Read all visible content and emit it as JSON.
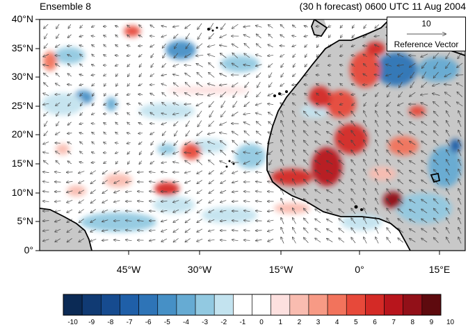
{
  "header": {
    "ensemble_label": "Ensemble 8",
    "forecast_label": "(30 h forecast) 0600 UTC 11 Aug 2004"
  },
  "map": {
    "lat_labels": [
      "40°N",
      "35°N",
      "30°N",
      "25°N",
      "20°N",
      "15°N",
      "10°N",
      "5°N",
      "0°"
    ],
    "lon_labels": [
      "45°W",
      "30°W",
      "15°W",
      "0°",
      "15°E"
    ],
    "reference_vector": {
      "magnitude": "10",
      "label": "Reference Vector"
    },
    "land_color": "#c8c8c8",
    "coast_color": "#000000"
  },
  "colorbar": {
    "labels": [
      "-10",
      "-9",
      "-8",
      "-7",
      "-6",
      "-5",
      "-4",
      "-3",
      "-2",
      "-1",
      "0",
      "1",
      "2",
      "3",
      "4",
      "5",
      "6",
      "7",
      "8",
      "9",
      "10"
    ],
    "colors": [
      "#0b2a55",
      "#103a73",
      "#164b8f",
      "#1f5fa8",
      "#2e74b7",
      "#4690c6",
      "#66abd3",
      "#92c9e1",
      "#c3e3ef",
      "#ffffff",
      "#ffffff",
      "#fde0df",
      "#f9bcb0",
      "#f79a85",
      "#f2735c",
      "#e7493a",
      "#d42a26",
      "#b8151c",
      "#921018",
      "#5e0a0e"
    ]
  }
}
